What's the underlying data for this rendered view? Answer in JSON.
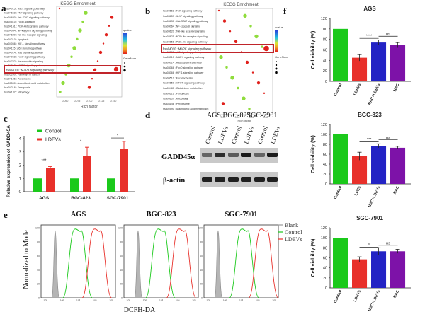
{
  "panels": {
    "a": {
      "label": "a",
      "title": "KEGG Enrichment",
      "xlabel": "Rich factor",
      "ticks": [
        "0.050",
        "0.075",
        "0.100",
        "0.125",
        "0.150"
      ],
      "highlight": "hsa04010 : MAPK signaling pathway",
      "legend_q": "qvalue",
      "legend_gene": "GeneNum",
      "terms": [
        "hsa04015 : Rap1 signaling pathway",
        "hsa04668 : TNF signaling pathway",
        "hsa04630 : Jak-STAT signaling pathway",
        "hsa04510 : Focal adhesion",
        "hsa04151 : PI3K-Akt signaling pathway",
        "hsa04064 : NF-kappa B signaling pathway",
        "hsa04620 : Toll-like receptor signaling",
        "hsa04210 : Apoptosis",
        "hsa04066 : HIF-1 signaling pathway",
        "hsa04115 : p53 signaling pathway",
        "hsa04014 : Ras signaling pathway",
        "hsa04068 : FoxO signaling pathway",
        "hsa04722 : Neurotrophin signaling",
        "hsa04010 : MAPK signaling pathway",
        "hsa00480 : Glutathione metabolism",
        "hsa05200 : Pathways in cancer",
        "hsa04146 : Peroxisome",
        "hsa00590 : Arachidonic acid metabolism",
        "hsa04216 : Ferroptosis",
        "hsa04137 : Mitophagy"
      ]
    },
    "b": {
      "label": "b",
      "title": "KEGG Enrichment",
      "xlabel": "Rich factor",
      "ticks": [
        "0.02",
        "0.04",
        "0.06",
        "0.08"
      ],
      "highlight": "hsa04010 : MAPK signaling pathway",
      "legend_q": "qvalue",
      "legend_gene": "GeneNum",
      "terms": [
        "hsa04668 : TNF signaling pathway",
        "hsa04657 : IL-17 signaling pathway",
        "hsa04630 : Jak-STAT signaling pathway",
        "hsa04064 : NF-kappa B signaling",
        "hsa04620 : Toll-like receptor signaling",
        "hsa04621 : NOD-like receptor signaling",
        "hsa04151 : PI3K-Akt signaling pathway",
        "hsa04210 : Apoptosis",
        "hsa04115 : p53 signaling pathway",
        "hsa04010 : MAPK signaling pathway",
        "hsa04014 : Ras signaling pathway",
        "hsa04068 : FoxO signaling pathway",
        "hsa04066 : HIF-1 signaling pathway",
        "hsa04510 : Focal adhesion",
        "hsa04150 : mTOR signaling pathway",
        "hsa00480 : Glutathione metabolism",
        "hsa04216 : Ferroptosis",
        "hsa04137 : Mitophagy",
        "hsa04146 : Peroxisome",
        "hsa00590 : Arachidonic acid metabolism"
      ]
    },
    "c": {
      "label": "c"
    },
    "d": {
      "label": "d",
      "cells": [
        "AGS",
        "BGC-823",
        "SGC-7901"
      ],
      "lanes": [
        "Control",
        "LDEVs",
        "Control",
        "LDEVs",
        "Control",
        "LDEVs"
      ],
      "bands": [
        "GADD45α",
        "β-actin"
      ]
    },
    "e": {
      "label": "e",
      "ylabel": "Normalized to Mode",
      "xlabel": "DCFH-DA",
      "cells": [
        "AGS",
        "BGC-823",
        "SGC-7901"
      ],
      "legend": [
        "Blank",
        "Control",
        "LDEVs"
      ],
      "xticks": [
        "10¹",
        "10²",
        "10³",
        "10⁴",
        "10⁵"
      ],
      "yticks": [
        "0",
        "20",
        "40",
        "60",
        "80",
        "100"
      ]
    },
    "f": {
      "label": "f"
    }
  },
  "colors": {
    "control": "#1bc91b",
    "ldevs": "#e8302a",
    "nac_ldevs": "#2323c4",
    "nac": "#7d12a8",
    "blank": "#9a9a9a",
    "highlight_box": "#c0242a"
  },
  "chart_data": [
    {
      "id": "c",
      "type": "bar",
      "title": "",
      "ylabel": "Relative expression of GADD45A",
      "xlabel": "",
      "categories": [
        "AGS",
        "BGC-823",
        "SGC-7901"
      ],
      "series": [
        {
          "name": "Control",
          "values": [
            1.0,
            1.0,
            1.0
          ],
          "errors": [
            0,
            0,
            0
          ]
        },
        {
          "name": "LDEVs",
          "values": [
            1.8,
            2.7,
            3.2
          ],
          "errors": [
            0.1,
            0.65,
            0.6
          ]
        }
      ],
      "ylim": [
        0,
        4
      ],
      "yticks": [
        "0",
        "1",
        "2",
        "3",
        "4"
      ],
      "significance": [
        "***",
        "*",
        "*"
      ],
      "legend": [
        "Control",
        "LDEVs"
      ]
    },
    {
      "id": "f1",
      "type": "bar",
      "title": "AGS",
      "ylabel": "Cell viability (%)",
      "categories": [
        "Control",
        "LDEVs",
        "NAC+LDEVs",
        "NAC"
      ],
      "values": [
        100,
        45,
        74,
        69
      ],
      "errors": [
        0,
        6,
        5,
        5
      ],
      "ylim": [
        0,
        120
      ],
      "yticks": [
        "0",
        "20",
        "40",
        "60",
        "80",
        "100",
        "120"
      ],
      "significance": [
        {
          "label": "****",
          "from": 1,
          "to": 2
        },
        {
          "label": "ns",
          "from": 2,
          "to": 3
        }
      ]
    },
    {
      "id": "f2",
      "type": "bar",
      "title": "BGC-823",
      "ylabel": "Cell viability (%)",
      "categories": [
        "Control",
        "LDEs",
        "NAC+LDEVs",
        "NAC"
      ],
      "values": [
        100,
        56,
        77,
        73
      ],
      "errors": [
        0,
        8,
        4,
        3
      ],
      "ylim": [
        0,
        120
      ],
      "yticks": [
        "0",
        "20",
        "40",
        "60",
        "80",
        "100",
        "120"
      ],
      "significance": [
        {
          "label": "***",
          "from": 1,
          "to": 2
        },
        {
          "label": "ns",
          "from": 2,
          "to": 3
        }
      ]
    },
    {
      "id": "f3",
      "type": "bar",
      "title": "SGC-7901",
      "ylabel": "Cell viability (%)",
      "categories": [
        "Control",
        "LDEVs",
        "NAC+LDEVs",
        "NAC"
      ],
      "values": [
        100,
        57,
        73,
        73
      ],
      "errors": [
        0,
        5,
        7,
        4
      ],
      "ylim": [
        0,
        120
      ],
      "yticks": [
        "0",
        "20",
        "40",
        "60",
        "80",
        "100",
        "120"
      ],
      "significance": [
        {
          "label": "**",
          "from": 1,
          "to": 2
        },
        {
          "label": "ns",
          "from": 2,
          "to": 3
        }
      ]
    }
  ]
}
